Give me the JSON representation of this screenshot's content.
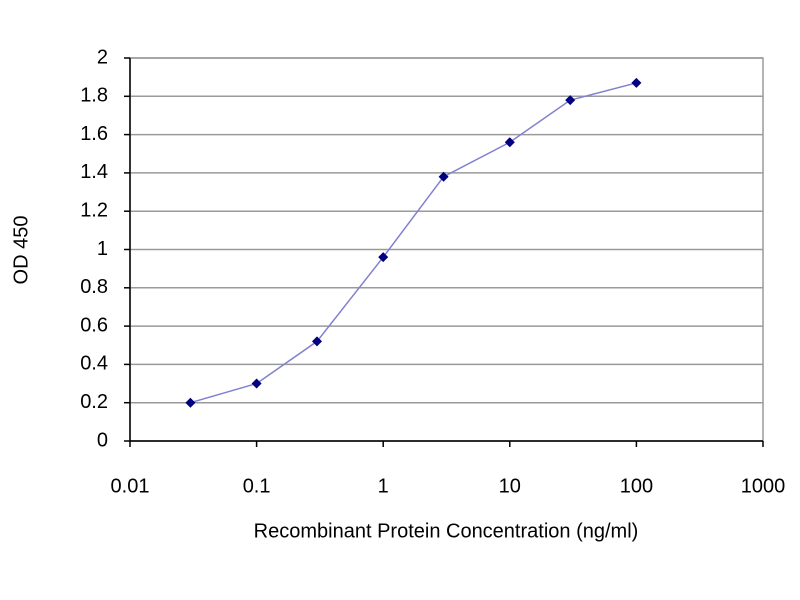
{
  "chart_data": {
    "type": "line",
    "x_label": "Recombinant Protein Concentration (ng/ml)",
    "y_label": "OD 450",
    "x": [
      0.03,
      0.1,
      0.3,
      1,
      3,
      10,
      30,
      100
    ],
    "series": [
      {
        "color": "#8080d0",
        "marker_color": "#000080",
        "values": [
          0.2,
          0.3,
          0.52,
          0.96,
          1.38,
          1.56,
          1.78,
          1.87
        ]
      }
    ],
    "xscale": "log",
    "xlim": [
      0.01,
      1000
    ],
    "xticks": [
      0.01,
      0.1,
      1,
      10,
      100,
      1000
    ],
    "ylim": [
      0,
      2
    ],
    "yticks": [
      0,
      0.2,
      0.4,
      0.6,
      0.8,
      1,
      1.2,
      1.4,
      1.6,
      1.8,
      2
    ],
    "grid": true
  }
}
